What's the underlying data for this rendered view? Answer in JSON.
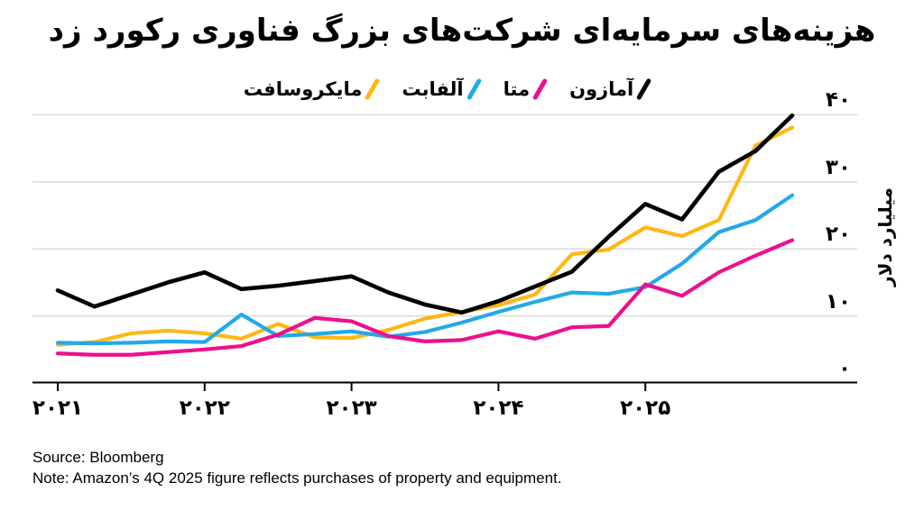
{
  "title": "هزینه‌های سرمایه‌ای شرکت‌های بزرگ فناوری رکورد زد",
  "y_axis": {
    "title": "میلیارد دلار",
    "ticks": [
      {
        "value": 40,
        "label": "۴۰"
      },
      {
        "value": 30,
        "label": "۳۰"
      },
      {
        "value": 20,
        "label": "۲۰"
      },
      {
        "value": 10,
        "label": "۱۰"
      },
      {
        "value": 0,
        "label": "۰"
      }
    ]
  },
  "x_axis": {
    "ticks": [
      {
        "quarter_index": 0,
        "label": "۲۰۲۱"
      },
      {
        "quarter_index": 4,
        "label": "۲۰۲۲"
      },
      {
        "quarter_index": 8,
        "label": "۲۰۲۳"
      },
      {
        "quarter_index": 12,
        "label": "۲۰۲۴"
      },
      {
        "quarter_index": 16,
        "label": "۲۰۲۵"
      }
    ]
  },
  "footer": {
    "source": "Source: Bloomberg",
    "note": "Note: Amazon’s 4Q 2025 figure reflects purchases of property and equipment."
  },
  "chart_data": {
    "type": "line",
    "unit": "billion USD per quarter",
    "ylim": [
      0,
      40
    ],
    "grid": "horizontal",
    "legend_position": "top",
    "quarters": [
      "Q4 2020",
      "Q1 2021",
      "Q2 2021",
      "Q3 2021",
      "Q4 2021",
      "Q1 2022",
      "Q2 2022",
      "Q3 2022",
      "Q4 2022",
      "Q1 2023",
      "Q2 2023",
      "Q3 2023",
      "Q4 2023",
      "Q1 2024",
      "Q2 2024",
      "Q3 2024",
      "Q4 2024",
      "Q1 2025",
      "Q2 2025",
      "Q3 2025",
      "Q4 2025"
    ],
    "series": [
      {
        "key": "amazon",
        "label": "آمازون",
        "color": "#000000",
        "values": [
          13.8,
          11.4,
          13.2,
          15.0,
          16.5,
          14.0,
          14.5,
          15.2,
          15.9,
          13.5,
          11.7,
          10.5,
          12.2,
          14.4,
          16.6,
          21.8,
          26.7,
          24.4,
          31.5,
          34.6,
          39.9
        ]
      },
      {
        "key": "meta",
        "label": "متا",
        "color": "#EC108F",
        "values": [
          4.4,
          4.2,
          4.2,
          4.6,
          5.0,
          5.5,
          7.2,
          9.7,
          9.2,
          7.0,
          6.2,
          6.4,
          7.7,
          6.6,
          8.3,
          8.5,
          14.7,
          13.0,
          16.5,
          19.0,
          21.3
        ]
      },
      {
        "key": "alphabet",
        "label": "آلفابت",
        "color": "#23A9E9",
        "values": [
          6.0,
          5.9,
          6.0,
          6.2,
          6.1,
          10.2,
          7.0,
          7.3,
          7.7,
          6.9,
          7.6,
          9.0,
          10.6,
          12.1,
          13.5,
          13.3,
          14.3,
          17.8,
          22.5,
          24.3,
          28.0
        ]
      },
      {
        "key": "microsoft",
        "label": "مایکروسافت",
        "color": "#FDB813",
        "values": [
          5.7,
          6.1,
          7.4,
          7.8,
          7.4,
          6.6,
          8.8,
          6.8,
          6.7,
          7.9,
          9.6,
          10.6,
          11.6,
          13.2,
          19.2,
          19.9,
          23.2,
          21.9,
          24.3,
          35.4,
          38.1
        ]
      }
    ]
  }
}
